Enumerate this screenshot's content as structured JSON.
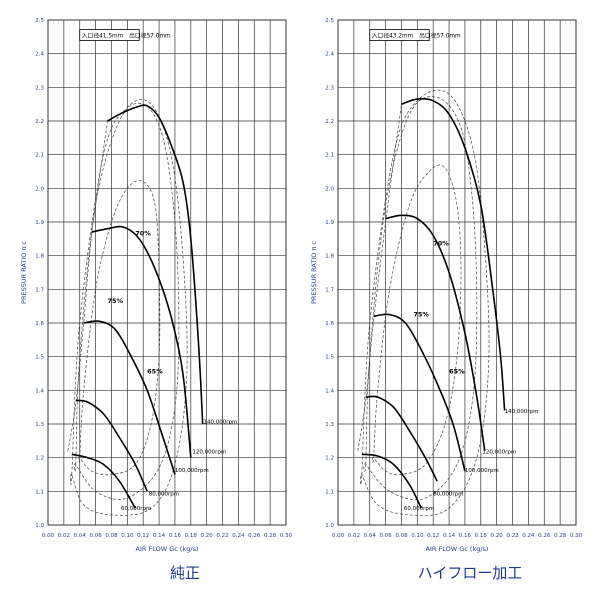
{
  "captions": [
    "純正",
    "ハイフロー加工"
  ],
  "colors": {
    "axis_text": "#2b3f8f",
    "grid": "#333333",
    "curve": "#000000",
    "caption": "#233a8c"
  },
  "chart_data": [
    {
      "type": "line",
      "label_box": "入口径41.5mm　出口径57.0mm",
      "xlabel": "AIR FLOW Gc (kg/s)",
      "ylabel": "PRESSUR RATIO π c",
      "xlim": [
        0,
        0.3
      ],
      "ylim": [
        1.0,
        2.5
      ],
      "xticks": [
        "0.00",
        "0.02",
        "0.04",
        "0.06",
        "0.08",
        "0.10",
        "0.12",
        "0.14",
        "0.16",
        "0.18",
        "0.20",
        "0.22",
        "0.24",
        "0.26",
        "0.28",
        "0.30"
      ],
      "yticks": [
        "1.0",
        "1.1",
        "1.2",
        "1.3",
        "1.4",
        "1.5",
        "1.6",
        "1.7",
        "1.8",
        "1.9",
        "2.0",
        "2.1",
        "2.2",
        "2.3",
        "2.4",
        "2.5"
      ],
      "grid": true,
      "speed_lines": [
        {
          "name": "60,000rpm",
          "points": [
            [
              0.03,
              1.21
            ],
            [
              0.05,
              1.2
            ],
            [
              0.07,
              1.18
            ],
            [
              0.09,
              1.13
            ],
            [
              0.11,
              1.05
            ]
          ],
          "label_at": [
            0.092,
            1.044
          ]
        },
        {
          "name": "80,000rpm",
          "points": [
            [
              0.035,
              1.37
            ],
            [
              0.05,
              1.365
            ],
            [
              0.07,
              1.33
            ],
            [
              0.09,
              1.26
            ],
            [
              0.11,
              1.18
            ],
            [
              0.125,
              1.1
            ]
          ],
          "label_at": [
            0.127,
            1.087
          ]
        },
        {
          "name": "100,000rpm",
          "points": [
            [
              0.045,
              1.6
            ],
            [
              0.065,
              1.605
            ],
            [
              0.085,
              1.58
            ],
            [
              0.105,
              1.5
            ],
            [
              0.125,
              1.4
            ],
            [
              0.145,
              1.26
            ],
            [
              0.16,
              1.15
            ]
          ],
          "label_at": [
            0.16,
            1.158
          ]
        },
        {
          "name": "120,000rpm",
          "points": [
            [
              0.055,
              1.87
            ],
            [
              0.075,
              1.88
            ],
            [
              0.095,
              1.885
            ],
            [
              0.115,
              1.85
            ],
            [
              0.135,
              1.76
            ],
            [
              0.155,
              1.62
            ],
            [
              0.17,
              1.45
            ],
            [
              0.18,
              1.2
            ]
          ],
          "label_at": [
            0.182,
            1.212
          ]
        },
        {
          "name": "140,000rpm",
          "points": [
            [
              0.075,
              2.2
            ],
            [
              0.09,
              2.22
            ],
            [
              0.11,
              2.24
            ],
            [
              0.125,
              2.245
            ],
            [
              0.14,
              2.21
            ],
            [
              0.155,
              2.13
            ],
            [
              0.17,
              2.02
            ],
            [
              0.18,
              1.85
            ],
            [
              0.19,
              1.53
            ],
            [
              0.195,
              1.3
            ]
          ],
          "label_at": [
            0.196,
            1.302
          ]
        }
      ],
      "surge_line": [
        [
          0.025,
          1.22
        ],
        [
          0.035,
          1.36
        ],
        [
          0.045,
          1.6
        ],
        [
          0.055,
          1.86
        ],
        [
          0.075,
          2.2
        ]
      ],
      "efficiency_islands": [
        {
          "name": "75%",
          "points": [
            [
              0.04,
              1.2
            ],
            [
              0.045,
              1.4
            ],
            [
              0.06,
              1.7
            ],
            [
              0.08,
              1.9
            ],
            [
              0.1,
              2.0
            ],
            [
              0.12,
              2.02
            ],
            [
              0.135,
              1.95
            ],
            [
              0.14,
              1.75
            ],
            [
              0.14,
              1.5
            ],
            [
              0.13,
              1.3
            ],
            [
              0.11,
              1.18
            ],
            [
              0.08,
              1.15
            ],
            [
              0.055,
              1.16
            ],
            [
              0.04,
              1.2
            ]
          ],
          "label": "75%",
          "label_at": [
            0.075,
            1.66
          ]
        },
        {
          "name": "70%",
          "points": [
            [
              0.035,
              1.18
            ],
            [
              0.04,
              1.5
            ],
            [
              0.06,
              1.95
            ],
            [
              0.09,
              2.2
            ],
            [
              0.12,
              2.25
            ],
            [
              0.145,
              2.15
            ],
            [
              0.16,
              1.9
            ],
            [
              0.165,
              1.6
            ],
            [
              0.16,
              1.35
            ],
            [
              0.14,
              1.17
            ],
            [
              0.1,
              1.08
            ],
            [
              0.06,
              1.1
            ],
            [
              0.035,
              1.18
            ]
          ],
          "label": "70%",
          "label_at": [
            0.11,
            1.86
          ]
        },
        {
          "name": "65%",
          "points": [
            [
              0.03,
              1.15
            ],
            [
              0.04,
              1.6
            ],
            [
              0.07,
              2.1
            ],
            [
              0.1,
              2.24
            ],
            [
              0.13,
              2.25
            ],
            [
              0.155,
              2.1
            ],
            [
              0.17,
              1.8
            ],
            [
              0.175,
              1.45
            ],
            [
              0.16,
              1.18
            ],
            [
              0.13,
              1.05
            ],
            [
              0.08,
              1.03
            ],
            [
              0.045,
              1.06
            ],
            [
              0.03,
              1.15
            ]
          ],
          "label": "65%",
          "label_at": [
            0.125,
            1.45
          ]
        }
      ]
    },
    {
      "type": "line",
      "label_box": "入口径43.2mm　出口径57.0mm",
      "xlabel": "AIR FLOW Gc (kg/s)",
      "ylabel": "PRESSUR RATIO π c",
      "xlim": [
        0,
        0.3
      ],
      "ylim": [
        1.0,
        2.5
      ],
      "xticks": [
        "0.00",
        "0.02",
        "0.04",
        "0.06",
        "0.08",
        "0.10",
        "0.12",
        "0.14",
        "0.16",
        "0.18",
        "0.20",
        "0.22",
        "0.24",
        "0.26",
        "0.28",
        "0.30"
      ],
      "yticks": [
        "1.0",
        "1.1",
        "1.2",
        "1.3",
        "1.4",
        "1.5",
        "1.6",
        "1.7",
        "1.8",
        "1.9",
        "2.0",
        "2.1",
        "2.2",
        "2.3",
        "2.4",
        "2.5"
      ],
      "grid": true,
      "speed_lines": [
        {
          "name": "60,000rpm",
          "points": [
            [
              0.03,
              1.21
            ],
            [
              0.05,
              1.205
            ],
            [
              0.07,
              1.18
            ],
            [
              0.09,
              1.12
            ],
            [
              0.105,
              1.05
            ]
          ],
          "label_at": [
            0.083,
            1.044
          ]
        },
        {
          "name": "80,000rpm",
          "points": [
            [
              0.035,
              1.38
            ],
            [
              0.05,
              1.38
            ],
            [
              0.07,
              1.35
            ],
            [
              0.09,
              1.28
            ],
            [
              0.11,
              1.2
            ],
            [
              0.125,
              1.13
            ]
          ],
          "label_at": [
            0.12,
            1.087
          ]
        },
        {
          "name": "100,000rpm",
          "points": [
            [
              0.045,
              1.62
            ],
            [
              0.065,
              1.625
            ],
            [
              0.085,
              1.6
            ],
            [
              0.105,
              1.52
            ],
            [
              0.125,
              1.42
            ],
            [
              0.145,
              1.3
            ],
            [
              0.16,
              1.16
            ]
          ],
          "label_at": [
            0.16,
            1.158
          ]
        },
        {
          "name": "120,000rpm",
          "points": [
            [
              0.06,
              1.91
            ],
            [
              0.08,
              1.92
            ],
            [
              0.1,
              1.91
            ],
            [
              0.12,
              1.86
            ],
            [
              0.14,
              1.75
            ],
            [
              0.16,
              1.57
            ],
            [
              0.175,
              1.38
            ],
            [
              0.185,
              1.22
            ]
          ],
          "label_at": [
            0.182,
            1.212
          ]
        },
        {
          "name": "140,000rpm",
          "points": [
            [
              0.08,
              2.25
            ],
            [
              0.1,
              2.265
            ],
            [
              0.12,
              2.26
            ],
            [
              0.14,
              2.22
            ],
            [
              0.16,
              2.12
            ],
            [
              0.18,
              1.95
            ],
            [
              0.195,
              1.7
            ],
            [
              0.205,
              1.5
            ],
            [
              0.21,
              1.34
            ]
          ],
          "label_at": [
            0.21,
            1.332
          ]
        }
      ],
      "surge_line": [
        [
          0.025,
          1.22
        ],
        [
          0.035,
          1.37
        ],
        [
          0.045,
          1.61
        ],
        [
          0.06,
          1.9
        ],
        [
          0.08,
          2.25
        ]
      ],
      "efficiency_islands": [
        {
          "name": "75%",
          "points": [
            [
              0.045,
              1.2
            ],
            [
              0.05,
              1.4
            ],
            [
              0.065,
              1.7
            ],
            [
              0.09,
              1.95
            ],
            [
              0.115,
              2.05
            ],
            [
              0.135,
              2.06
            ],
            [
              0.15,
              1.95
            ],
            [
              0.155,
              1.75
            ],
            [
              0.15,
              1.5
            ],
            [
              0.135,
              1.3
            ],
            [
              0.11,
              1.18
            ],
            [
              0.08,
              1.15
            ],
            [
              0.06,
              1.16
            ],
            [
              0.045,
              1.2
            ]
          ],
          "label": "75%",
          "label_at": [
            0.095,
            1.62
          ]
        },
        {
          "name": "70%",
          "points": [
            [
              0.035,
              1.18
            ],
            [
              0.04,
              1.5
            ],
            [
              0.06,
              1.95
            ],
            [
              0.09,
              2.22
            ],
            [
              0.125,
              2.27
            ],
            [
              0.155,
              2.18
            ],
            [
              0.17,
              1.95
            ],
            [
              0.175,
              1.65
            ],
            [
              0.17,
              1.38
            ],
            [
              0.15,
              1.18
            ],
            [
              0.11,
              1.08
            ],
            [
              0.065,
              1.1
            ],
            [
              0.035,
              1.18
            ]
          ],
          "label": "70%",
          "label_at": [
            0.12,
            1.83
          ]
        },
        {
          "name": "65%",
          "points": [
            [
              0.03,
              1.15
            ],
            [
              0.04,
              1.6
            ],
            [
              0.07,
              2.1
            ],
            [
              0.1,
              2.26
            ],
            [
              0.14,
              2.28
            ],
            [
              0.17,
              2.12
            ],
            [
              0.185,
              1.82
            ],
            [
              0.19,
              1.48
            ],
            [
              0.175,
              1.2
            ],
            [
              0.14,
              1.05
            ],
            [
              0.09,
              1.03
            ],
            [
              0.05,
              1.06
            ],
            [
              0.03,
              1.15
            ]
          ],
          "label": "65%",
          "label_at": [
            0.14,
            1.45
          ]
        }
      ]
    }
  ]
}
